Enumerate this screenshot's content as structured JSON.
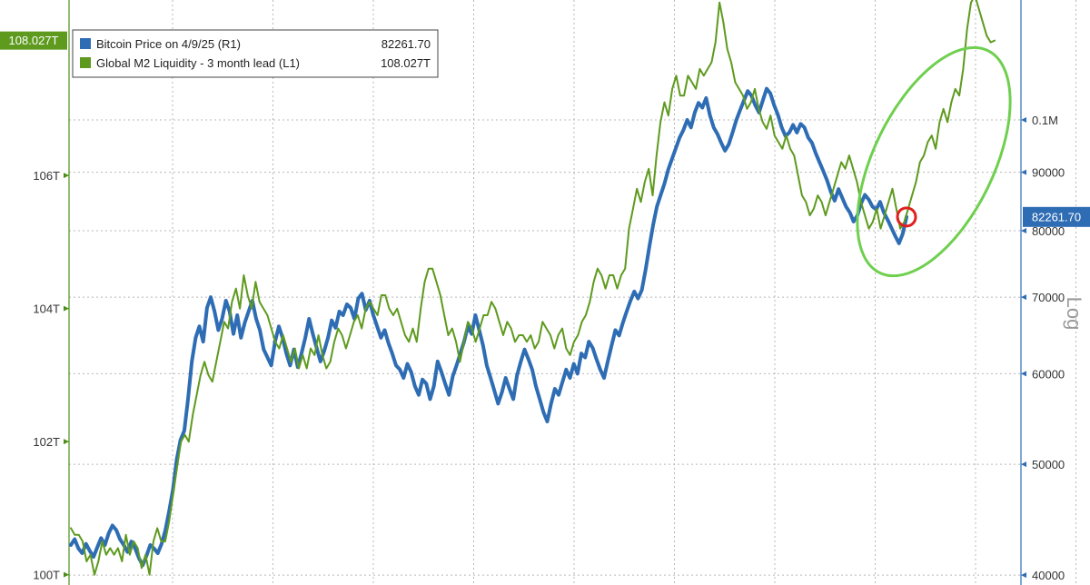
{
  "chart_data": {
    "type": "line",
    "legend": {
      "position": "top-left",
      "entries": [
        {
          "label": "Bitcoin Price on 4/9/25 (R1)",
          "value": "82261.70",
          "color": "#2e6db4"
        },
        {
          "label": "Global M2 Liquidity - 3 month lead (L1)",
          "value": "108.027T",
          "color": "#5e9a1e"
        }
      ]
    },
    "left_axis": {
      "ticks": [
        {
          "value": 100,
          "label": "100T"
        },
        {
          "value": 102,
          "label": "102T"
        },
        {
          "value": 104,
          "label": "104T"
        },
        {
          "value": 106,
          "label": "106T"
        }
      ],
      "range": [
        99.9,
        108.5
      ],
      "last_value_flag": "108.027T",
      "last_value": 108.027
    },
    "right_axis": {
      "scale": "log",
      "scale_label": "Log",
      "ticks": [
        {
          "value": 40000,
          "label": "40000"
        },
        {
          "value": 50000,
          "label": "50000"
        },
        {
          "value": 60000,
          "label": "60000"
        },
        {
          "value": 70000,
          "label": "70000"
        },
        {
          "value": 80000,
          "label": "80000"
        },
        {
          "value": 90000,
          "label": "90000"
        },
        {
          "value": 100000,
          "label": "0.1M"
        }
      ],
      "range": [
        39500,
        125000
      ],
      "last_value_flag": "82261.70",
      "last_value": 82261.7
    },
    "grid": true,
    "annotations": [
      "ellipse around recent M2 rise",
      "red circle at latest Bitcoin price"
    ],
    "series": [
      {
        "name": "Global M2 Liquidity - 3 month lead (L1)",
        "axis": "left",
        "color": "#5e9a1e",
        "values": [
          100.7,
          100.6,
          100.6,
          100.5,
          100.2,
          100.3,
          100.0,
          100.2,
          100.5,
          100.3,
          100.4,
          100.3,
          100.4,
          100.2,
          100.6,
          100.3,
          100.5,
          100.4,
          100.1,
          100.3,
          100.0,
          100.5,
          100.7,
          100.5,
          100.5,
          100.8,
          101.2,
          101.6,
          102.0,
          102.1,
          102.0,
          102.4,
          102.7,
          103.0,
          103.2,
          103.0,
          102.9,
          103.2,
          103.5,
          103.8,
          103.7,
          104.1,
          104.3,
          104.0,
          104.5,
          104.2,
          104.0,
          104.4,
          104.1,
          104.0,
          103.9,
          103.7,
          103.5,
          103.4,
          103.6,
          103.4,
          103.2,
          103.4,
          103.1,
          103.3,
          103.1,
          103.4,
          103.3,
          103.6,
          103.3,
          103.1,
          103.2,
          103.5,
          103.7,
          103.6,
          103.4,
          103.6,
          103.8,
          103.9,
          103.7,
          104.0,
          104.1,
          104.0,
          103.9,
          104.2,
          104.2,
          104.0,
          103.9,
          104.0,
          103.8,
          103.6,
          103.5,
          103.7,
          103.5,
          104.0,
          104.4,
          104.6,
          104.6,
          104.4,
          104.2,
          103.9,
          103.6,
          103.7,
          103.5,
          103.2,
          103.5,
          103.8,
          103.7,
          103.5,
          103.7,
          103.9,
          103.9,
          104.1,
          104.0,
          103.8,
          103.6,
          103.8,
          103.7,
          103.5,
          103.6,
          103.6,
          103.5,
          103.6,
          103.4,
          103.5,
          103.8,
          103.7,
          103.6,
          103.4,
          103.6,
          103.7,
          103.4,
          103.3,
          103.5,
          103.6,
          103.8,
          103.9,
          104.1,
          104.4,
          104.6,
          104.5,
          104.3,
          104.5,
          104.5,
          104.3,
          104.5,
          104.6,
          105.2,
          105.5,
          105.8,
          105.6,
          105.9,
          106.1,
          105.7,
          106.3,
          106.8,
          107.1,
          106.9,
          107.3,
          107.5,
          107.2,
          107.2,
          107.5,
          107.4,
          107.3,
          107.6,
          107.5,
          107.6,
          107.7,
          108.0,
          108.6,
          108.3,
          107.9,
          107.7,
          107.4,
          107.3,
          107.2,
          107.0,
          107.1,
          107.3,
          107.0,
          106.8,
          106.7,
          106.9,
          106.6,
          106.5,
          106.4,
          106.6,
          106.4,
          106.3,
          106.0,
          105.7,
          105.6,
          105.4,
          105.5,
          105.7,
          105.6,
          105.4,
          105.6,
          105.8,
          106.0,
          106.2,
          106.1,
          106.3,
          106.1,
          105.9,
          105.6,
          105.4,
          105.2,
          105.3,
          105.5,
          105.2,
          105.4,
          105.6,
          105.8,
          105.5,
          105.2,
          105.3,
          105.5,
          105.7,
          105.9,
          106.2,
          106.3,
          106.5,
          106.6,
          106.4,
          106.8,
          107.0,
          106.8,
          107.1,
          107.3,
          107.2,
          107.6,
          108.2,
          108.6,
          108.7,
          108.5,
          108.3,
          108.1,
          108.0,
          108.027
        ]
      },
      {
        "name": "Bitcoin Price on 4/9/25 (R1)",
        "axis": "right",
        "color": "#2e6db4",
        "values": [
          42500,
          43000,
          42200,
          41800,
          42600,
          42000,
          41500,
          42300,
          43100,
          42500,
          43500,
          44200,
          43800,
          43000,
          42500,
          41900,
          42800,
          42200,
          41400,
          40800,
          41600,
          42500,
          42200,
          41800,
          42600,
          43800,
          45500,
          47500,
          50500,
          52500,
          53500,
          57000,
          61500,
          64500,
          66000,
          64000,
          68500,
          70000,
          68000,
          65500,
          67000,
          69500,
          68000,
          65000,
          67500,
          64500,
          66500,
          68000,
          69500,
          67000,
          65500,
          63000,
          62000,
          61000,
          64000,
          66000,
          64500,
          62500,
          61000,
          63000,
          60800,
          62500,
          64500,
          67000,
          65000,
          63200,
          61500,
          62800,
          64500,
          66800,
          65800,
          68000,
          67500,
          69000,
          68500,
          67000,
          69800,
          70500,
          68200,
          69500,
          67500,
          66000,
          64500,
          65500,
          63800,
          62500,
          61000,
          60500,
          59500,
          61200,
          60200,
          58500,
          57500,
          59300,
          58800,
          57000,
          58500,
          61500,
          60200,
          58800,
          57500,
          59700,
          61000,
          62500,
          64000,
          66000,
          65000,
          67500,
          65500,
          63500,
          61000,
          59500,
          58000,
          56500,
          57800,
          59500,
          58200,
          57000,
          59800,
          61500,
          63000,
          61800,
          60500,
          58500,
          57000,
          55500,
          54500,
          56500,
          58200,
          57500,
          59000,
          60500,
          59500,
          61200,
          60000,
          62500,
          62000,
          64000,
          63200,
          61800,
          60500,
          59500,
          61500,
          63500,
          65500,
          64800,
          66500,
          68000,
          69500,
          70800,
          69800,
          71000,
          74000,
          77500,
          81000,
          84000,
          86000,
          88000,
          90500,
          92500,
          94500,
          96500,
          98000,
          100000,
          98500,
          101500,
          103500,
          102500,
          104500,
          101000,
          98500,
          97200,
          95500,
          94000,
          95200,
          97500,
          100000,
          102000,
          104000,
          106000,
          105000,
          103000,
          101500,
          104000,
          106500,
          105500,
          103000,
          101000,
          98500,
          96800,
          97500,
          99000,
          97500,
          99200,
          98500,
          96500,
          95500,
          93500,
          91800,
          90200,
          88500,
          86500,
          85000,
          87000,
          85500,
          84000,
          83000,
          81500,
          82500,
          84500,
          86000,
          85200,
          84000,
          83500,
          84800,
          83000,
          81800,
          80500,
          79200,
          78000,
          79500,
          82261.7
        ]
      }
    ]
  }
}
